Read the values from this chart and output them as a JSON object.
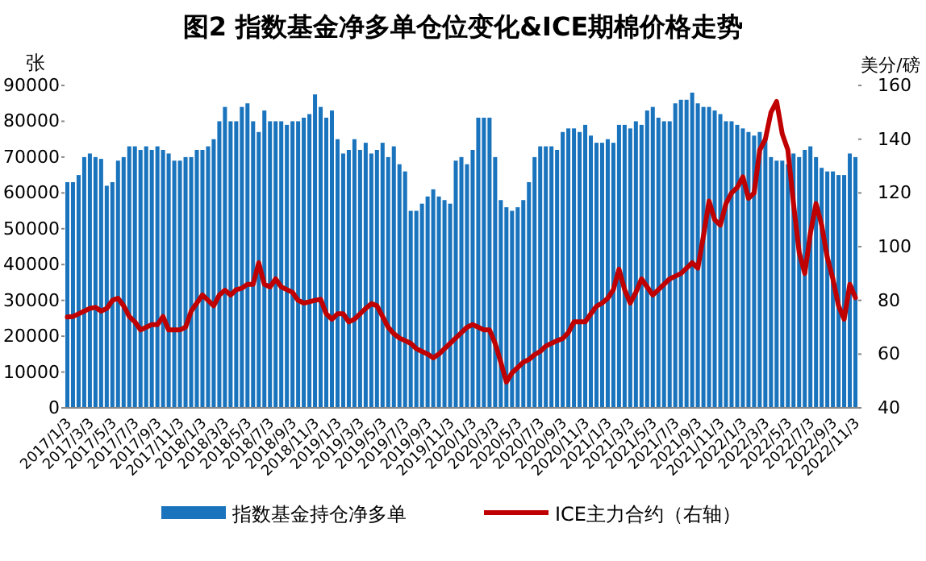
{
  "chart_data": {
    "type": "bar",
    "title": "图2  指数基金净多单仓位变化&ICE期棉价格走势",
    "ylabel": "张",
    "y2label": "美分/磅",
    "categories": [
      "2017/1/3",
      null,
      null,
      null,
      "2017/3/3",
      null,
      null,
      null,
      "2017/5/3",
      null,
      null,
      null,
      "2017/7/3",
      null,
      null,
      null,
      "2017/9/3",
      null,
      null,
      null,
      "2017/11/3",
      null,
      null,
      null,
      "2018/1/3",
      null,
      null,
      null,
      "2018/3/3",
      null,
      null,
      null,
      "2018/5/3",
      null,
      null,
      null,
      "2018/7/3",
      null,
      null,
      null,
      "2018/9/3",
      null,
      null,
      null,
      "2018/11/3",
      null,
      null,
      null,
      "2019/1/3",
      null,
      null,
      null,
      "2019/3/3",
      null,
      null,
      null,
      "2019/5/3",
      null,
      null,
      null,
      "2019/7/3",
      null,
      null,
      null,
      "2019/9/3",
      null,
      null,
      null,
      "2019/11/3",
      null,
      null,
      null,
      "2020/1/3",
      null,
      null,
      null,
      "2020/3/3",
      null,
      null,
      null,
      "2020/5/3",
      null,
      null,
      null,
      "2020/7/3",
      null,
      null,
      null,
      "2020/9/3",
      null,
      null,
      null,
      "2020/11/3",
      null,
      null,
      null,
      "2021/1/3",
      null,
      null,
      null,
      "2021/3/3",
      null,
      null,
      null,
      "2021/5/3",
      null,
      null,
      null,
      "2021/7/3",
      null,
      null,
      null,
      "2021/9/3",
      null,
      null,
      null,
      "2021/11/3",
      null,
      null,
      null,
      "2022/1/3",
      null,
      null,
      null,
      "2022/3/3",
      null,
      null,
      null,
      "2022/5/3",
      null,
      null,
      null,
      "2022/7/3",
      null,
      null,
      null,
      "2022/9/3",
      null,
      null,
      null,
      "2022/11/3"
    ],
    "series": [
      {
        "name": "指数基金持仓净多单",
        "color": "#1a74bd",
        "values": [
          63000,
          63000,
          65000,
          70000,
          71000,
          70000,
          69500,
          62000,
          63000,
          69000,
          70000,
          73000,
          73000,
          72000,
          73000,
          72000,
          73000,
          72000,
          71000,
          69000,
          69000,
          70000,
          70000,
          72000,
          72000,
          73000,
          75000,
          80000,
          84000,
          80000,
          80000,
          84000,
          85000,
          80000,
          77000,
          83000,
          80000,
          80000,
          80000,
          79000,
          80000,
          80000,
          81000,
          82000,
          87500,
          84000,
          81000,
          83000,
          75000,
          71000,
          72000,
          75000,
          72000,
          74000,
          71000,
          72000,
          74000,
          70000,
          73000,
          68000,
          66000,
          55000,
          55000,
          57000,
          59000,
          61000,
          59000,
          58000,
          57000,
          69000,
          70000,
          68000,
          72000,
          81000,
          81000,
          81000,
          70000,
          58000,
          56000,
          55000,
          56000,
          58000,
          63000,
          70000,
          73000,
          73000,
          73000,
          72000,
          77000,
          78000,
          78000,
          77000,
          79000,
          76000,
          74000,
          74000,
          75000,
          74000,
          79000,
          79000,
          78000,
          80000,
          79000,
          83000,
          84000,
          81000,
          80000,
          80000,
          85000,
          86000,
          86000,
          88000,
          85000,
          84000,
          84000,
          83000,
          82000,
          80000,
          80000,
          79000,
          78000,
          77000,
          76000,
          77000,
          75000,
          70000,
          69000,
          69000,
          68000,
          71000,
          70000,
          72000,
          73000,
          70000,
          67000,
          66000,
          66000,
          65000,
          65000,
          71000,
          70000
        ]
      },
      {
        "name": "ICE主力合约（右轴）",
        "type": "line",
        "axis": "y2",
        "color": "#c00000",
        "values": [
          73.8,
          74,
          75,
          76,
          77,
          77.4,
          76,
          77,
          80,
          80.8,
          78,
          74,
          72,
          69,
          70,
          71,
          71,
          74,
          69,
          69,
          69,
          70,
          76,
          79,
          82,
          80,
          78,
          82,
          83.8,
          82,
          84,
          84.5,
          86,
          86,
          94,
          86,
          85,
          88,
          85,
          84,
          83,
          80,
          79,
          79.5,
          80,
          80.4,
          75,
          73,
          75,
          75,
          72,
          73,
          75,
          77,
          78.8,
          78,
          74,
          70,
          67.6,
          66,
          65,
          64,
          62,
          61,
          60,
          58.6,
          60,
          62,
          64,
          66,
          68,
          70,
          71,
          70,
          69,
          69,
          64,
          57,
          49.6,
          53,
          55,
          57,
          58,
          59.8,
          61,
          63,
          64,
          65,
          65.8,
          68,
          72,
          72,
          72,
          75,
          77.8,
          79,
          80.8,
          84,
          91.6,
          84,
          79,
          83,
          88,
          85,
          82,
          84,
          86,
          88,
          89,
          90,
          92,
          94,
          92,
          104,
          117,
          110,
          108,
          116,
          120,
          122,
          126,
          118,
          120,
          136,
          140,
          150,
          154,
          142,
          136,
          116,
          98,
          90,
          105,
          116,
          108,
          96,
          88,
          78,
          73,
          86,
          81
        ]
      }
    ],
    "ylim": [
      0,
      90000
    ],
    "yticks": [
      0,
      10000,
      20000,
      30000,
      40000,
      50000,
      60000,
      70000,
      80000,
      90000
    ],
    "y2lim": [
      40,
      160
    ],
    "y2ticks": [
      40,
      60,
      80,
      100,
      120,
      140,
      160
    ],
    "legend": "bottom",
    "grid": false
  }
}
